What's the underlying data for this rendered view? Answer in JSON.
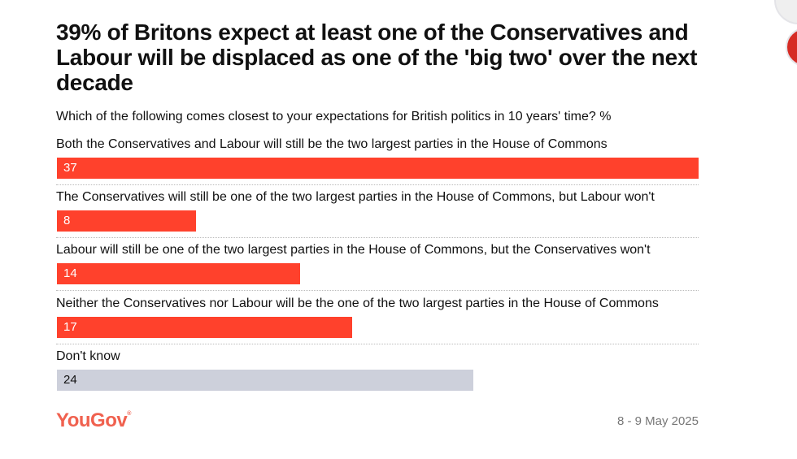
{
  "title": "39% of Britons expect at least one of the Conservatives and Labour will be displaced as one of the 'big two' over the next decade",
  "subtitle": "Which of the following comes closest to your expectations for British politics in 10 years' time? %",
  "chart_data": {
    "type": "bar",
    "orientation": "horizontal",
    "categories": [
      "Both the Conservatives and Labour will still be the two largest parties in the House of Commons",
      "The Conservatives will still be one of the two largest parties in the House of Commons, but Labour won't",
      "Labour will still be one of the two largest parties in the House of Commons, but the Conservatives won't",
      "Neither the Conservatives nor Labour will be the one of the two largest parties in the House of Commons",
      "Don't know"
    ],
    "values": [
      37,
      8,
      14,
      17,
      24
    ],
    "colors": [
      "#ff412c",
      "#ff412c",
      "#ff412c",
      "#ff412c",
      "#cdd0db"
    ],
    "xlim": [
      0,
      37
    ]
  },
  "footer": {
    "logo": "YouGov",
    "date": "8 - 9 May 2025"
  },
  "colors": {
    "accent": "#ff412c",
    "neutral": "#cdd0db",
    "logo": "#f0614f"
  }
}
